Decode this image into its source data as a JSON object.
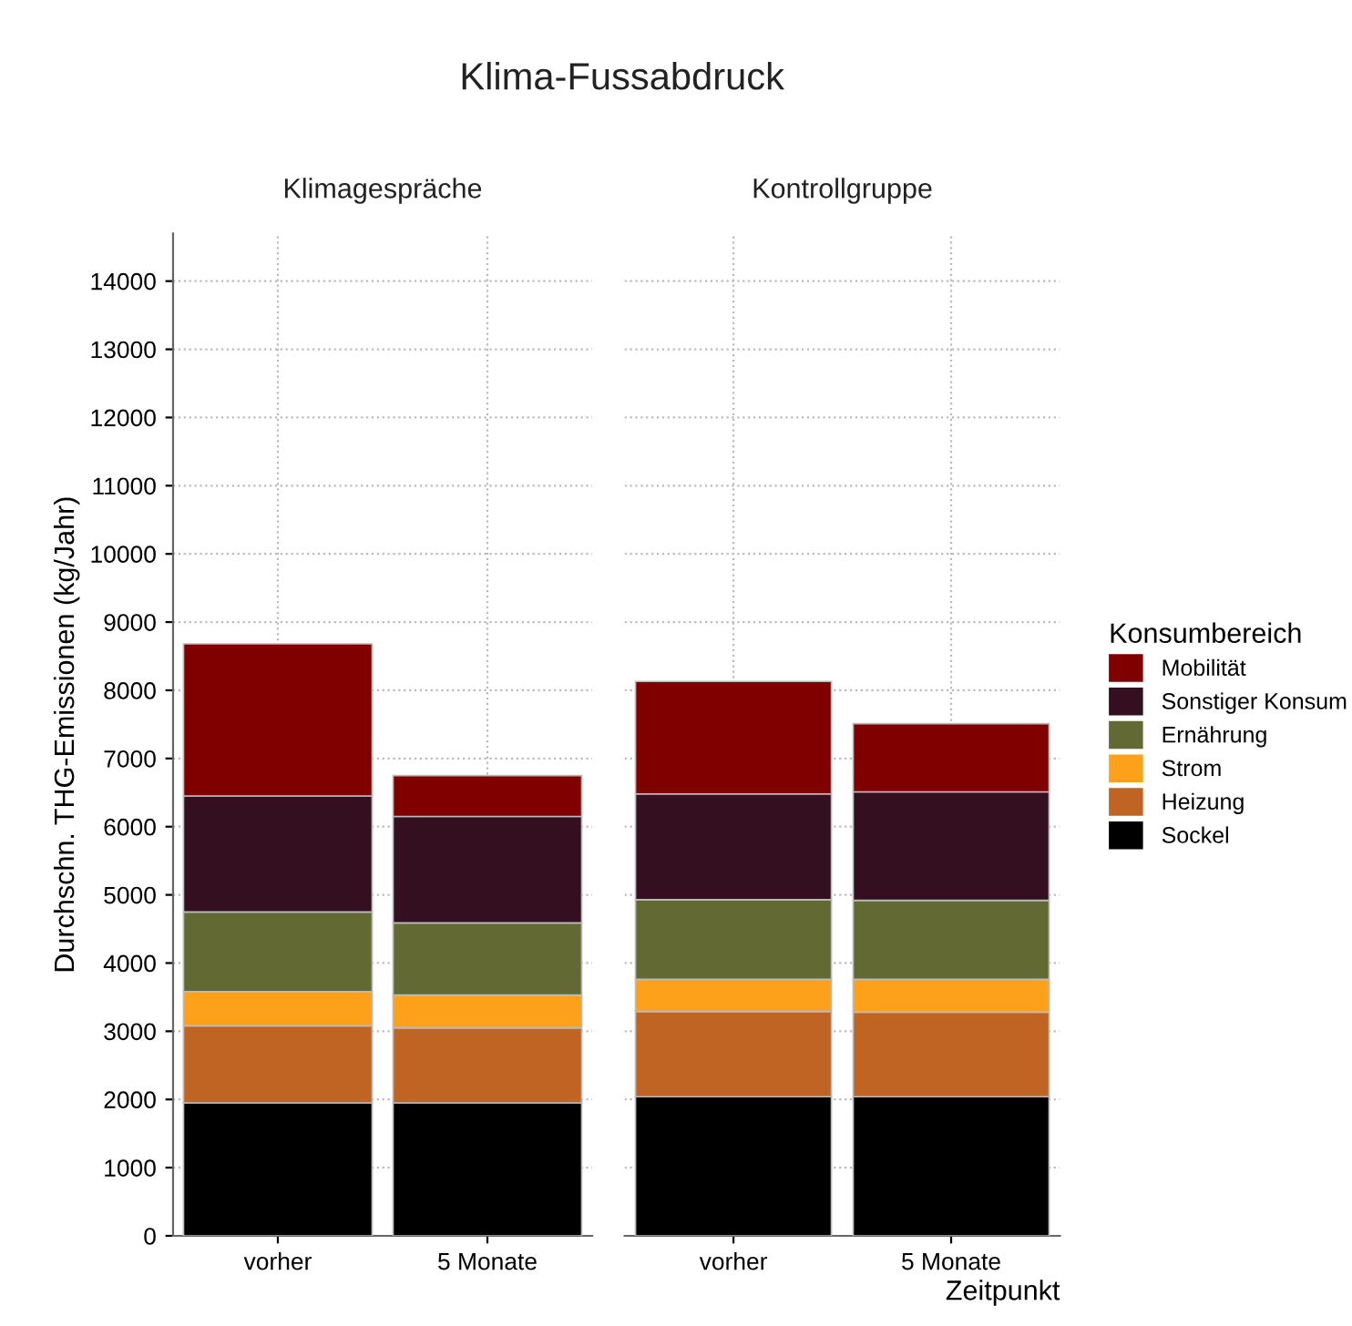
{
  "chart_data": [
    {
      "type": "bar",
      "stacked": true,
      "title": "Klima-Fussabdruck",
      "subtitle": "Klimagespräche",
      "ylabel": "Durchschn. THG-Emissionen (kg/Jahr)",
      "legend_title": "Konsumbereich",
      "categories": [
        "vorher",
        "5 Monate"
      ],
      "ylim": [
        0,
        14700
      ],
      "yticks": [
        0,
        1000,
        2000,
        3000,
        4000,
        5000,
        6000,
        7000,
        8000,
        9000,
        10000,
        11000,
        12000,
        13000,
        14000
      ],
      "grid": true,
      "legend": "right",
      "series": [
        {
          "name": "Sockel",
          "color": "#000000",
          "values": [
            1950,
            1950
          ]
        },
        {
          "name": "Heizung",
          "color": "#c06423",
          "values": [
            1130,
            1100
          ]
        },
        {
          "name": "Strom",
          "color": "#fda11b",
          "values": [
            500,
            480
          ]
        },
        {
          "name": "Ernährung",
          "color": "#636932",
          "values": [
            1170,
            1060
          ]
        },
        {
          "name": "Sonstiger Konsum",
          "color": "#330f1f",
          "values": [
            1700,
            1560
          ]
        },
        {
          "name": "Mobilität",
          "color": "#800000",
          "values": [
            2230,
            600
          ]
        }
      ]
    },
    {
      "type": "bar",
      "stacked": true,
      "subtitle": "Kontrollgruppe",
      "xlabel": "Zeitpunkt",
      "categories": [
        "vorher",
        "5 Monate"
      ],
      "ylim": [
        0,
        14700
      ],
      "yticks": [
        0,
        1000,
        2000,
        3000,
        4000,
        5000,
        6000,
        7000,
        8000,
        9000,
        10000,
        11000,
        12000,
        13000,
        14000
      ],
      "tick_labels": "x",
      "grid": true,
      "series": [
        {
          "color": "#000000",
          "values": [
            2040,
            2040
          ]
        },
        {
          "color": "#c06423",
          "values": [
            1250,
            1240
          ]
        },
        {
          "color": "#fda11b",
          "values": [
            470,
            480
          ]
        },
        {
          "color": "#636932",
          "values": [
            1170,
            1160
          ]
        },
        {
          "color": "#330f1f",
          "values": [
            1550,
            1590
          ]
        },
        {
          "color": "#800000",
          "values": [
            1650,
            1000
          ]
        }
      ]
    }
  ]
}
